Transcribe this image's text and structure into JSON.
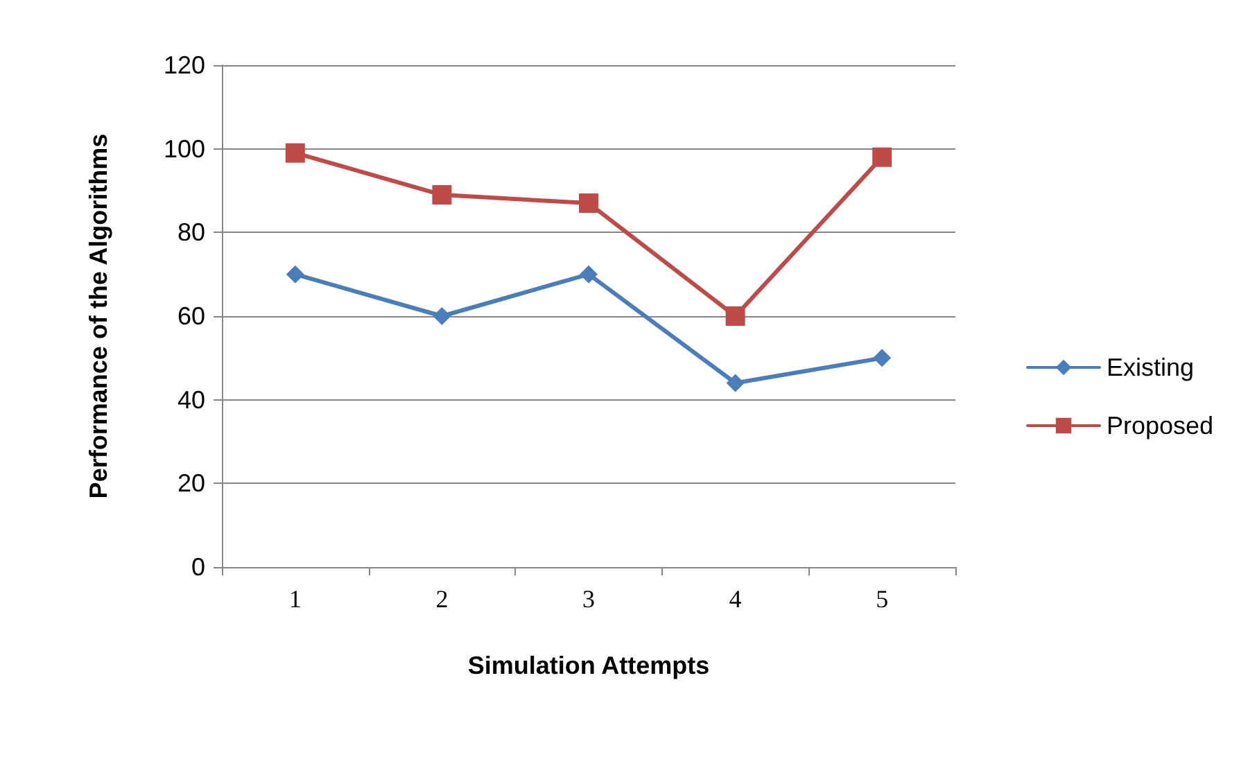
{
  "chart_data": {
    "type": "line",
    "xlabel": "Simulation Attempts",
    "ylabel": "Performance of the Algorithms",
    "categories": [
      "1",
      "2",
      "3",
      "4",
      "5"
    ],
    "series": [
      {
        "name": "Existing",
        "color": "#4a7ebb",
        "marker": "diamond",
        "values": [
          70,
          60,
          70,
          44,
          50
        ]
      },
      {
        "name": "Proposed",
        "color": "#be4b48",
        "marker": "square",
        "values": [
          99,
          89,
          87,
          60,
          98
        ]
      }
    ],
    "ylim": [
      0,
      120
    ],
    "yticks": [
      0,
      20,
      40,
      60,
      80,
      100,
      120
    ],
    "grid": "y",
    "legend": "right",
    "line_style": "solid"
  }
}
